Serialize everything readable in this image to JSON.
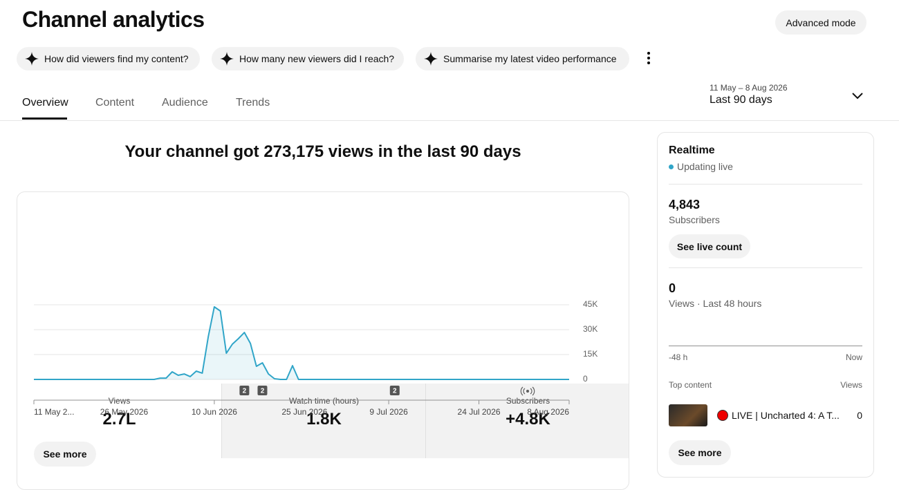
{
  "header": {
    "title": "Channel analytics",
    "advanced_button": "Advanced mode"
  },
  "suggestions": [
    "How did viewers find my content?",
    "How many new viewers did I reach?",
    "Summarise my latest video performance"
  ],
  "tabs": [
    "Overview",
    "Content",
    "Audience",
    "Trends"
  ],
  "date_range": {
    "dates": "11 May – 8 Aug 2026",
    "label": "Last 90 days"
  },
  "headline": "Your channel got 273,175 views in the last 90 days",
  "metrics": [
    {
      "label": "Views",
      "value": "2.7L"
    },
    {
      "label": "Watch time (hours)",
      "value": "1.8K"
    },
    {
      "label": "Subscribers",
      "value": "+4.8K"
    }
  ],
  "chart_data": {
    "type": "line",
    "x": [
      "2026-05-11",
      "2026-05-12",
      "2026-05-13",
      "2026-05-14",
      "2026-05-15",
      "2026-05-16",
      "2026-05-17",
      "2026-05-18",
      "2026-05-19",
      "2026-05-20",
      "2026-05-21",
      "2026-05-22",
      "2026-05-23",
      "2026-05-24",
      "2026-05-25",
      "2026-05-26",
      "2026-05-27",
      "2026-05-28",
      "2026-05-29",
      "2026-05-30",
      "2026-05-31",
      "2026-06-01",
      "2026-06-02",
      "2026-06-03",
      "2026-06-04",
      "2026-06-05",
      "2026-06-06",
      "2026-06-07",
      "2026-06-08",
      "2026-06-09",
      "2026-06-10",
      "2026-06-11",
      "2026-06-12",
      "2026-06-13",
      "2026-06-14",
      "2026-06-15",
      "2026-06-16",
      "2026-06-17",
      "2026-06-18",
      "2026-06-19",
      "2026-06-20",
      "2026-06-21",
      "2026-06-22",
      "2026-06-23",
      "2026-06-24",
      "2026-06-25",
      "2026-06-26",
      "2026-06-27",
      "2026-06-28",
      "2026-06-29",
      "2026-06-30",
      "2026-07-01",
      "2026-07-02",
      "2026-07-03",
      "2026-07-04",
      "2026-07-05",
      "2026-07-06",
      "2026-07-07",
      "2026-07-08",
      "2026-07-09",
      "2026-07-10",
      "2026-07-11",
      "2026-07-12",
      "2026-07-13",
      "2026-07-14",
      "2026-07-15",
      "2026-07-16",
      "2026-07-17",
      "2026-07-18",
      "2026-07-19",
      "2026-07-20",
      "2026-07-21",
      "2026-07-22",
      "2026-07-23",
      "2026-07-24",
      "2026-07-25",
      "2026-07-26",
      "2026-07-27",
      "2026-07-28",
      "2026-07-29",
      "2026-07-30",
      "2026-07-31",
      "2026-08-01",
      "2026-08-02",
      "2026-08-03",
      "2026-08-04",
      "2026-08-05",
      "2026-08-06",
      "2026-08-07",
      "2026-08-08"
    ],
    "series": [
      {
        "name": "Views",
        "color": "#30a5c8",
        "values": [
          0,
          0,
          0,
          0,
          0,
          0,
          0,
          0,
          0,
          0,
          0,
          0,
          0,
          0,
          0,
          0,
          0,
          0,
          0,
          0,
          0,
          800,
          800,
          4600,
          2500,
          3300,
          1700,
          5000,
          3800,
          25800,
          43750,
          41250,
          15800,
          21250,
          24600,
          28300,
          21700,
          7900,
          10000,
          3300,
          400,
          0,
          0,
          8300,
          0,
          0,
          0,
          0,
          0,
          0,
          0,
          0,
          0,
          0,
          0,
          0,
          0,
          0,
          0,
          0,
          0,
          0,
          0,
          0,
          0,
          0,
          0,
          0,
          0,
          0,
          0,
          0,
          0,
          0,
          0,
          0,
          0,
          0,
          0,
          0,
          0,
          0,
          0,
          0,
          0,
          0,
          0,
          0,
          0,
          0
        ]
      }
    ],
    "xlim": [
      "2026-05-11",
      "2026-08-08"
    ],
    "xticks": [
      {
        "value": "2026-05-11",
        "label": "11 May 2..."
      },
      {
        "value": "2026-05-26",
        "label": "26 May 2026"
      },
      {
        "value": "2026-06-10",
        "label": "10 Jun 2026"
      },
      {
        "value": "2026-06-25",
        "label": "25 Jun 2026"
      },
      {
        "value": "2026-07-09",
        "label": "9 Jul 2026"
      },
      {
        "value": "2026-07-24",
        "label": "24 Jul 2026"
      },
      {
        "value": "2026-08-08",
        "label": "8 Aug 2026"
      }
    ],
    "ylim": [
      0,
      45000
    ],
    "yticks": [
      0,
      {
        "value": 15000,
        "label": "15K"
      },
      {
        "value": 30000,
        "label": "30K"
      },
      {
        "value": 45000,
        "label": "45K"
      }
    ],
    "grid": true,
    "annotations": [
      {
        "x": "2026-06-15",
        "text": "2"
      },
      {
        "x": "2026-06-18",
        "text": "2"
      },
      {
        "x": "2026-07-10",
        "text": "2"
      }
    ]
  },
  "chart_button": "See more",
  "realtime": {
    "title": "Realtime",
    "status": "Updating live",
    "subscribers": "4,843",
    "subscribers_label": "Subscribers",
    "live_count_button": "See live count",
    "views": "0",
    "views_label": "Views · Last 48 hours",
    "axis_start": "-48 h",
    "axis_end": "Now",
    "top_content_label": "Top content",
    "views_column": "Views",
    "top_content": [
      {
        "title": "LIVE | Uncharted 4: A T...",
        "views": "0"
      }
    ],
    "see_more_button": "See more"
  }
}
